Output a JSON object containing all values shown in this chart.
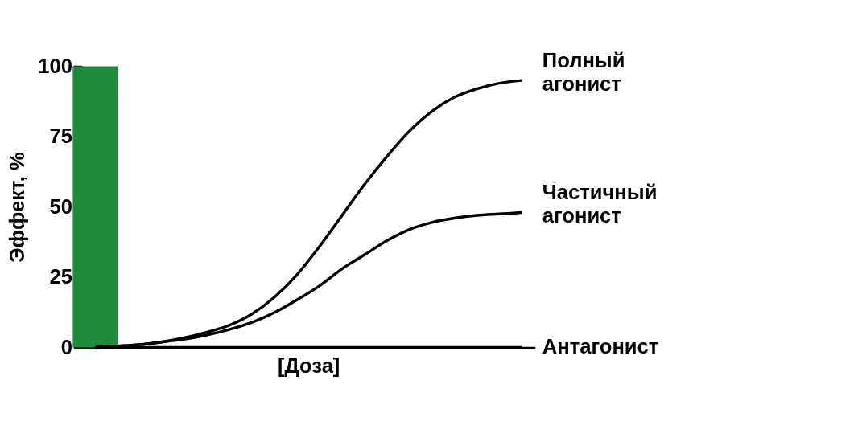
{
  "chart_data": {
    "type": "line",
    "xlabel": "[Доза]",
    "ylabel": "Эффект, %",
    "categories": [
      null,
      null,
      null,
      null,
      null,
      null,
      null,
      null,
      null,
      null,
      null,
      null,
      null,
      null,
      null,
      null,
      null,
      null,
      null,
      null
    ],
    "series": [
      {
        "type": "bar",
        "color": "#1e8c3a",
        "values": [
          100,
          null,
          null,
          null,
          null,
          null,
          null,
          null,
          null,
          null,
          null,
          null,
          null,
          null,
          null,
          null,
          null,
          null,
          null,
          null
        ]
      },
      {
        "name": "Полный агонист",
        "color": "#000000",
        "values": [
          0,
          0.5,
          1,
          2,
          3.5,
          5.5,
          8,
          12,
          18,
          26,
          36,
          47,
          58,
          68,
          77,
          84,
          89,
          92,
          94,
          95
        ]
      },
      {
        "name": "Частичный агонист",
        "color": "#000000",
        "values": [
          0,
          0.5,
          1,
          2,
          3,
          4.5,
          6.5,
          9,
          12.5,
          17,
          22,
          28,
          33,
          38,
          42,
          44.5,
          46,
          47,
          47.5,
          48
        ]
      },
      {
        "name": "Антагонист",
        "color": "#000000",
        "values": [
          0,
          0,
          0,
          0,
          0,
          0,
          0,
          0,
          0,
          0,
          0,
          0,
          0,
          0,
          0,
          0,
          0,
          0,
          0,
          0
        ]
      }
    ],
    "ylim": [
      0,
      100
    ],
    "yticks": [
      0,
      25,
      50,
      75,
      100
    ],
    "grid": false,
    "tick_labels": "y",
    "marker": "none",
    "line_style": "solid"
  }
}
